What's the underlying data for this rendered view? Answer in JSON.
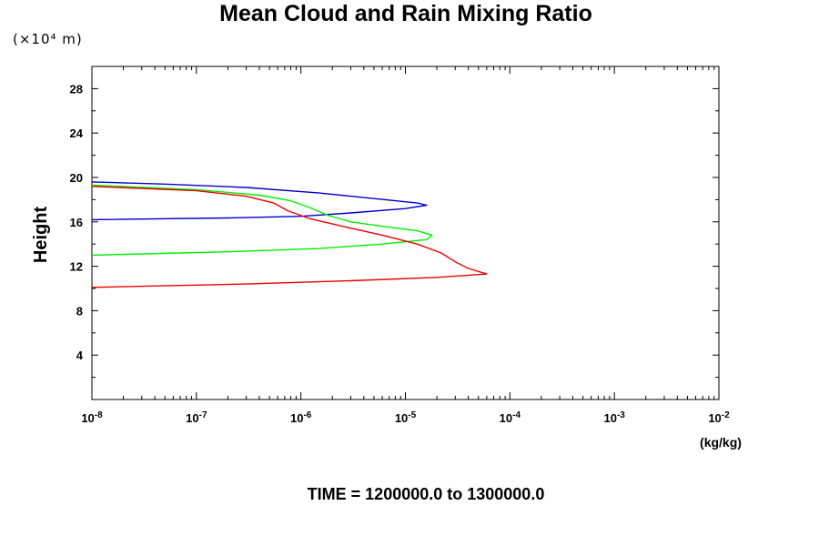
{
  "chart_data": {
    "type": "line",
    "title": "Mean Cloud and Rain Mixing Ratio",
    "y_scale_label": "(×10⁴ m)",
    "ylabel": "Height",
    "xlabel_units": "(kg/kg)",
    "footer": "TIME = 1200000.0 to 1300000.0",
    "x_scale": "log",
    "xlim": [
      1e-08,
      0.01
    ],
    "ylim": [
      0,
      30
    ],
    "x_ticks": [
      {
        "base": "10",
        "exp": "-8"
      },
      {
        "base": "10",
        "exp": "-7"
      },
      {
        "base": "10",
        "exp": "-6"
      },
      {
        "base": "10",
        "exp": "-5"
      },
      {
        "base": "10",
        "exp": "-4"
      },
      {
        "base": "10",
        "exp": "-3"
      },
      {
        "base": "10",
        "exp": "-2"
      }
    ],
    "y_ticks": [
      "4",
      "8",
      "12",
      "16",
      "20",
      "24",
      "28"
    ],
    "grid": false,
    "series": [
      {
        "color": "#0000cc",
        "points": [
          [
            1e-08,
            19.6
          ],
          [
            5e-08,
            19.4
          ],
          [
            3e-07,
            19.1
          ],
          [
            1.5e-06,
            18.6
          ],
          [
            5e-06,
            18.1
          ],
          [
            1.3e-05,
            17.7
          ],
          [
            1.6e-05,
            17.5
          ],
          [
            1e-05,
            17.2
          ],
          [
            3e-06,
            16.8
          ],
          [
            1e-06,
            16.5
          ],
          [
            2e-07,
            16.35
          ],
          [
            1e-08,
            16.2
          ]
        ]
      },
      {
        "color": "#00ee00",
        "points": [
          [
            1e-08,
            19.3
          ],
          [
            1e-07,
            18.9
          ],
          [
            4e-07,
            18.4
          ],
          [
            8e-07,
            17.9
          ],
          [
            1.2e-06,
            17.3
          ],
          [
            1.8e-06,
            16.6
          ],
          [
            3e-06,
            16.0
          ],
          [
            6e-06,
            15.6
          ],
          [
            1.3e-05,
            15.2
          ],
          [
            1.8e-05,
            14.8
          ],
          [
            1.6e-05,
            14.4
          ],
          [
            6e-06,
            14.0
          ],
          [
            1.5e-06,
            13.6
          ],
          [
            2e-07,
            13.3
          ],
          [
            1e-08,
            13.0
          ]
        ]
      },
      {
        "color": "#ee0000",
        "points": [
          [
            1e-08,
            19.2
          ],
          [
            1e-07,
            18.8
          ],
          [
            3e-07,
            18.3
          ],
          [
            5.5e-07,
            17.7
          ],
          [
            7.5e-07,
            17.0
          ],
          [
            1.2e-06,
            16.3
          ],
          [
            2.5e-06,
            15.6
          ],
          [
            6e-06,
            14.8
          ],
          [
            1.3e-05,
            14.0
          ],
          [
            2.2e-05,
            13.2
          ],
          [
            3e-05,
            12.4
          ],
          [
            4e-05,
            11.8
          ],
          [
            6e-05,
            11.3
          ],
          [
            2e-05,
            11.0
          ],
          [
            3e-06,
            10.7
          ],
          [
            3e-07,
            10.4
          ],
          [
            1e-08,
            10.1
          ]
        ]
      }
    ]
  }
}
